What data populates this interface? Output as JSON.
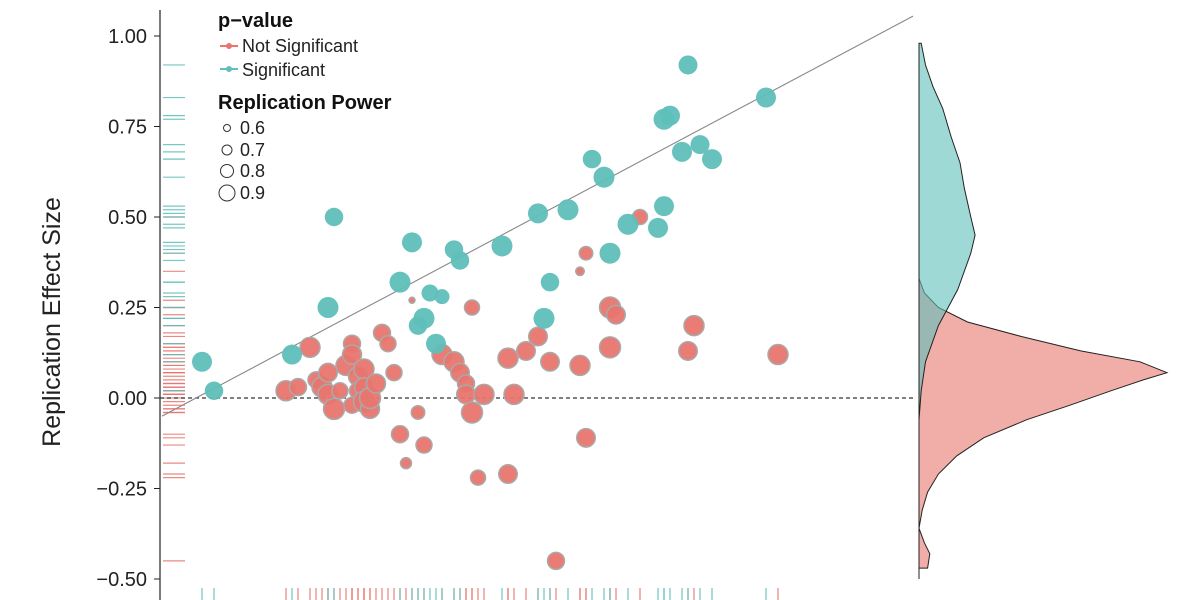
{
  "chart_data": {
    "type": "scatter",
    "ylabel": "Replication Effect Size",
    "ylim": [
      -0.5,
      1.0
    ],
    "xlim": [
      0.0,
      1.0
    ],
    "y_ticks": [
      "1.00",
      "0.75",
      "0.50",
      "0.25",
      "0.00",
      "−0.25",
      "−0.50"
    ],
    "grid": false,
    "reference_lines": [
      {
        "kind": "identity",
        "style": "solid",
        "color": "#888888"
      },
      {
        "kind": "zero",
        "style": "dashed",
        "color": "#333333"
      }
    ],
    "legend": {
      "placement": "top-left",
      "color_title": "p−value",
      "color_entries": [
        {
          "label": "Not Significant",
          "color": "#e8766e"
        },
        {
          "label": "Significant",
          "color": "#5fbfba"
        }
      ],
      "size_title": "Replication Power",
      "size_entries": [
        "0.6",
        "0.7",
        "0.8",
        "0.9"
      ]
    },
    "series": [
      {
        "name": "Not Significant",
        "color": "#e8766e",
        "points": [
          [
            0.16,
            0.02,
            0.88
          ],
          [
            0.18,
            0.03,
            0.82
          ],
          [
            0.2,
            0.14,
            0.88
          ],
          [
            0.21,
            0.05,
            0.8
          ],
          [
            0.22,
            0.03,
            0.88
          ],
          [
            0.23,
            0.07,
            0.85
          ],
          [
            0.23,
            0.01,
            0.88
          ],
          [
            0.24,
            -0.03,
            0.9
          ],
          [
            0.25,
            0.02,
            0.8
          ],
          [
            0.26,
            0.09,
            0.88
          ],
          [
            0.27,
            0.15,
            0.82
          ],
          [
            0.27,
            0.12,
            0.86
          ],
          [
            0.27,
            -0.02,
            0.8
          ],
          [
            0.28,
            0.06,
            0.86
          ],
          [
            0.28,
            0.02,
            0.82
          ],
          [
            0.29,
            0.08,
            0.88
          ],
          [
            0.29,
            0.03,
            0.85
          ],
          [
            0.29,
            -0.01,
            0.9
          ],
          [
            0.3,
            -0.03,
            0.86
          ],
          [
            0.3,
            0.0,
            0.9
          ],
          [
            0.31,
            0.04,
            0.86
          ],
          [
            0.32,
            0.18,
            0.82
          ],
          [
            0.33,
            0.15,
            0.8
          ],
          [
            0.34,
            0.07,
            0.8
          ],
          [
            0.35,
            -0.1,
            0.82
          ],
          [
            0.36,
            -0.18,
            0.7
          ],
          [
            0.37,
            0.27,
            0.6
          ],
          [
            0.38,
            -0.04,
            0.75
          ],
          [
            0.39,
            -0.13,
            0.8
          ],
          [
            0.42,
            0.12,
            0.88
          ],
          [
            0.44,
            0.1,
            0.88
          ],
          [
            0.45,
            0.07,
            0.85
          ],
          [
            0.46,
            0.04,
            0.82
          ],
          [
            0.46,
            0.01,
            0.85
          ],
          [
            0.47,
            -0.04,
            0.9
          ],
          [
            0.47,
            0.25,
            0.78
          ],
          [
            0.48,
            -0.22,
            0.78
          ],
          [
            0.49,
            0.01,
            0.88
          ],
          [
            0.53,
            0.11,
            0.88
          ],
          [
            0.53,
            -0.21,
            0.85
          ],
          [
            0.54,
            0.01,
            0.88
          ],
          [
            0.56,
            0.13,
            0.85
          ],
          [
            0.58,
            0.17,
            0.85
          ],
          [
            0.6,
            0.1,
            0.85
          ],
          [
            0.61,
            -0.45,
            0.82
          ],
          [
            0.65,
            0.35,
            0.65
          ],
          [
            0.65,
            0.09,
            0.88
          ],
          [
            0.66,
            0.4,
            0.75
          ],
          [
            0.66,
            -0.11,
            0.85
          ],
          [
            0.7,
            0.25,
            0.9
          ],
          [
            0.7,
            0.14,
            0.9
          ],
          [
            0.71,
            0.23,
            0.85
          ],
          [
            0.75,
            0.5,
            0.78
          ],
          [
            0.83,
            0.13,
            0.85
          ],
          [
            0.84,
            0.2,
            0.88
          ],
          [
            0.98,
            0.12,
            0.88
          ]
        ]
      },
      {
        "name": "Significant",
        "color": "#5fbfba",
        "points": [
          [
            0.02,
            0.1,
            0.88
          ],
          [
            0.04,
            0.02,
            0.85
          ],
          [
            0.17,
            0.12,
            0.88
          ],
          [
            0.23,
            0.25,
            0.9
          ],
          [
            0.24,
            0.5,
            0.85
          ],
          [
            0.35,
            0.32,
            0.9
          ],
          [
            0.37,
            0.43,
            0.88
          ],
          [
            0.38,
            0.2,
            0.85
          ],
          [
            0.39,
            0.22,
            0.9
          ],
          [
            0.4,
            0.29,
            0.82
          ],
          [
            0.41,
            0.15,
            0.88
          ],
          [
            0.42,
            0.28,
            0.78
          ],
          [
            0.44,
            0.41,
            0.85
          ],
          [
            0.45,
            0.38,
            0.85
          ],
          [
            0.52,
            0.42,
            0.9
          ],
          [
            0.58,
            0.51,
            0.88
          ],
          [
            0.59,
            0.22,
            0.9
          ],
          [
            0.6,
            0.32,
            0.85
          ],
          [
            0.63,
            0.52,
            0.9
          ],
          [
            0.67,
            0.66,
            0.85
          ],
          [
            0.69,
            0.61,
            0.9
          ],
          [
            0.7,
            0.4,
            0.9
          ],
          [
            0.73,
            0.48,
            0.9
          ],
          [
            0.78,
            0.47,
            0.88
          ],
          [
            0.79,
            0.53,
            0.88
          ],
          [
            0.79,
            0.77,
            0.9
          ],
          [
            0.8,
            0.78,
            0.88
          ],
          [
            0.82,
            0.68,
            0.88
          ],
          [
            0.83,
            0.92,
            0.86
          ],
          [
            0.85,
            0.7,
            0.86
          ],
          [
            0.87,
            0.66,
            0.88
          ],
          [
            0.96,
            0.83,
            0.88
          ]
        ]
      }
    ],
    "density": [
      {
        "name": "Not Significant",
        "color": "#e8766e",
        "curve": [
          [
            -0.47,
            0.08
          ],
          [
            -0.43,
            0.1
          ],
          [
            -0.4,
            0.05
          ],
          [
            -0.36,
            0.0
          ],
          [
            -0.31,
            0.03
          ],
          [
            -0.26,
            0.08
          ],
          [
            -0.21,
            0.18
          ],
          [
            -0.16,
            0.35
          ],
          [
            -0.11,
            0.6
          ],
          [
            -0.06,
            1.0
          ],
          [
            -0.02,
            1.4
          ],
          [
            0.02,
            1.78
          ],
          [
            0.05,
            2.08
          ],
          [
            0.07,
            2.3
          ],
          [
            0.1,
            2.05
          ],
          [
            0.13,
            1.5
          ],
          [
            0.17,
            0.95
          ],
          [
            0.21,
            0.45
          ],
          [
            0.25,
            0.18
          ],
          [
            0.29,
            0.05
          ],
          [
            0.33,
            0.0
          ]
        ]
      },
      {
        "name": "Significant",
        "color": "#5fbfba",
        "curve": [
          [
            -0.06,
            0.0
          ],
          [
            0.02,
            0.02
          ],
          [
            0.1,
            0.06
          ],
          [
            0.2,
            0.18
          ],
          [
            0.3,
            0.36
          ],
          [
            0.4,
            0.48
          ],
          [
            0.45,
            0.52
          ],
          [
            0.5,
            0.48
          ],
          [
            0.58,
            0.42
          ],
          [
            0.65,
            0.38
          ],
          [
            0.72,
            0.3
          ],
          [
            0.8,
            0.22
          ],
          [
            0.86,
            0.13
          ],
          [
            0.92,
            0.06
          ],
          [
            0.98,
            0.02
          ]
        ]
      }
    ]
  }
}
